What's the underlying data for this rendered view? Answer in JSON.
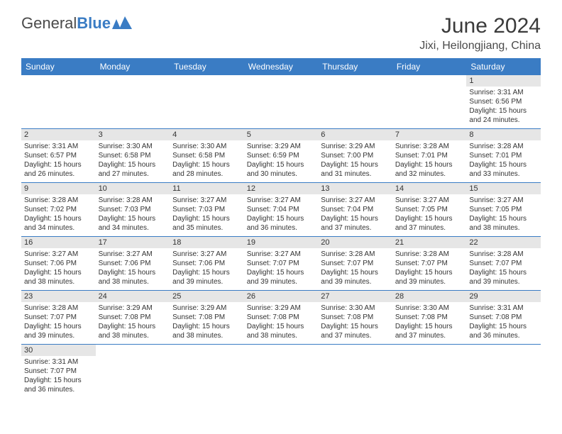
{
  "logo": {
    "text1": "General",
    "text2": "Blue"
  },
  "title": "June 2024",
  "location": "Jixi, Heilongjiang, China",
  "weekdays": [
    "Sunday",
    "Monday",
    "Tuesday",
    "Wednesday",
    "Thursday",
    "Friday",
    "Saturday"
  ],
  "colors": {
    "headerBar": "#3a7cc4",
    "dayNumberBg": "#e6e6e6",
    "borderColor": "#3a7cc4",
    "logoAccent": "#3a7cc4"
  },
  "leadingEmpty": 6,
  "days": [
    {
      "n": "1",
      "sunrise": "3:31 AM",
      "sunset": "6:56 PM",
      "dl": "15 hours and 24 minutes."
    },
    {
      "n": "2",
      "sunrise": "3:31 AM",
      "sunset": "6:57 PM",
      "dl": "15 hours and 26 minutes."
    },
    {
      "n": "3",
      "sunrise": "3:30 AM",
      "sunset": "6:58 PM",
      "dl": "15 hours and 27 minutes."
    },
    {
      "n": "4",
      "sunrise": "3:30 AM",
      "sunset": "6:58 PM",
      "dl": "15 hours and 28 minutes."
    },
    {
      "n": "5",
      "sunrise": "3:29 AM",
      "sunset": "6:59 PM",
      "dl": "15 hours and 30 minutes."
    },
    {
      "n": "6",
      "sunrise": "3:29 AM",
      "sunset": "7:00 PM",
      "dl": "15 hours and 31 minutes."
    },
    {
      "n": "7",
      "sunrise": "3:28 AM",
      "sunset": "7:01 PM",
      "dl": "15 hours and 32 minutes."
    },
    {
      "n": "8",
      "sunrise": "3:28 AM",
      "sunset": "7:01 PM",
      "dl": "15 hours and 33 minutes."
    },
    {
      "n": "9",
      "sunrise": "3:28 AM",
      "sunset": "7:02 PM",
      "dl": "15 hours and 34 minutes."
    },
    {
      "n": "10",
      "sunrise": "3:28 AM",
      "sunset": "7:03 PM",
      "dl": "15 hours and 34 minutes."
    },
    {
      "n": "11",
      "sunrise": "3:27 AM",
      "sunset": "7:03 PM",
      "dl": "15 hours and 35 minutes."
    },
    {
      "n": "12",
      "sunrise": "3:27 AM",
      "sunset": "7:04 PM",
      "dl": "15 hours and 36 minutes."
    },
    {
      "n": "13",
      "sunrise": "3:27 AM",
      "sunset": "7:04 PM",
      "dl": "15 hours and 37 minutes."
    },
    {
      "n": "14",
      "sunrise": "3:27 AM",
      "sunset": "7:05 PM",
      "dl": "15 hours and 37 minutes."
    },
    {
      "n": "15",
      "sunrise": "3:27 AM",
      "sunset": "7:05 PM",
      "dl": "15 hours and 38 minutes."
    },
    {
      "n": "16",
      "sunrise": "3:27 AM",
      "sunset": "7:06 PM",
      "dl": "15 hours and 38 minutes."
    },
    {
      "n": "17",
      "sunrise": "3:27 AM",
      "sunset": "7:06 PM",
      "dl": "15 hours and 38 minutes."
    },
    {
      "n": "18",
      "sunrise": "3:27 AM",
      "sunset": "7:06 PM",
      "dl": "15 hours and 39 minutes."
    },
    {
      "n": "19",
      "sunrise": "3:27 AM",
      "sunset": "7:07 PM",
      "dl": "15 hours and 39 minutes."
    },
    {
      "n": "20",
      "sunrise": "3:28 AM",
      "sunset": "7:07 PM",
      "dl": "15 hours and 39 minutes."
    },
    {
      "n": "21",
      "sunrise": "3:28 AM",
      "sunset": "7:07 PM",
      "dl": "15 hours and 39 minutes."
    },
    {
      "n": "22",
      "sunrise": "3:28 AM",
      "sunset": "7:07 PM",
      "dl": "15 hours and 39 minutes."
    },
    {
      "n": "23",
      "sunrise": "3:28 AM",
      "sunset": "7:07 PM",
      "dl": "15 hours and 39 minutes."
    },
    {
      "n": "24",
      "sunrise": "3:29 AM",
      "sunset": "7:08 PM",
      "dl": "15 hours and 38 minutes."
    },
    {
      "n": "25",
      "sunrise": "3:29 AM",
      "sunset": "7:08 PM",
      "dl": "15 hours and 38 minutes."
    },
    {
      "n": "26",
      "sunrise": "3:29 AM",
      "sunset": "7:08 PM",
      "dl": "15 hours and 38 minutes."
    },
    {
      "n": "27",
      "sunrise": "3:30 AM",
      "sunset": "7:08 PM",
      "dl": "15 hours and 37 minutes."
    },
    {
      "n": "28",
      "sunrise": "3:30 AM",
      "sunset": "7:08 PM",
      "dl": "15 hours and 37 minutes."
    },
    {
      "n": "29",
      "sunrise": "3:31 AM",
      "sunset": "7:08 PM",
      "dl": "15 hours and 36 minutes."
    },
    {
      "n": "30",
      "sunrise": "3:31 AM",
      "sunset": "7:07 PM",
      "dl": "15 hours and 36 minutes."
    }
  ],
  "labels": {
    "sunrise": "Sunrise:",
    "sunset": "Sunset:",
    "daylight": "Daylight:"
  }
}
